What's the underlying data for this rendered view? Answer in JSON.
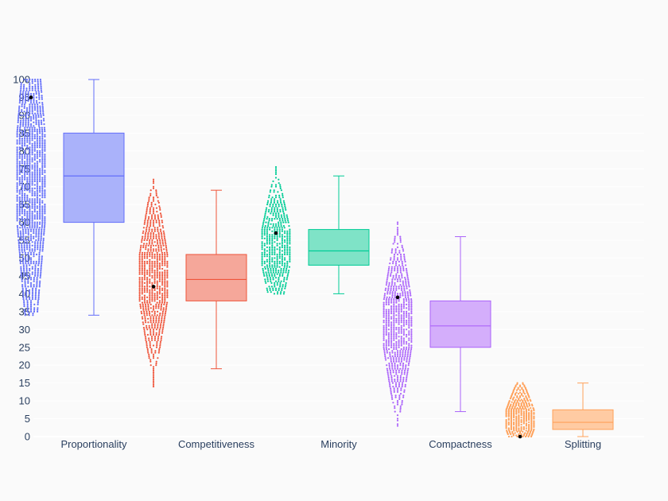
{
  "chart_data": {
    "type": "box",
    "title": "",
    "xlabel": "",
    "ylabel": "",
    "ylim": [
      0,
      100
    ],
    "ytick_step": 5,
    "grid": true,
    "legend": "none",
    "boxpoints": "all",
    "categories": [
      "Proportionality",
      "Competitiveness",
      "Minority",
      "Compactness",
      "Splitting"
    ],
    "series": [
      {
        "category": "Proportionality",
        "color": "#636efa",
        "fill": "#aab2fa",
        "whisker_low": 34,
        "q1": 60,
        "median": 73,
        "q3": 85,
        "whisker_high": 100,
        "points_min": 34,
        "points_max": 100,
        "highlight": 95
      },
      {
        "category": "Competitiveness",
        "color": "#ef553b",
        "fill": "#f5a79a",
        "whisker_low": 19,
        "q1": 38,
        "median": 44,
        "q3": 51,
        "whisker_high": 69,
        "points_min": 14,
        "points_max": 72,
        "highlight": 42
      },
      {
        "category": "Minority",
        "color": "#00cc96",
        "fill": "#7fe3c7",
        "whisker_low": 40,
        "q1": 48,
        "median": 52,
        "q3": 58,
        "whisker_high": 73,
        "points_min": 40,
        "points_max": 76,
        "highlight": 57
      },
      {
        "category": "Compactness",
        "color": "#ab63fa",
        "fill": "#d4aefb",
        "whisker_low": 7,
        "q1": 25,
        "median": 31,
        "q3": 38,
        "whisker_high": 56,
        "points_min": 3,
        "points_max": 60,
        "highlight": 39
      },
      {
        "category": "Splitting",
        "color": "#ffa15a",
        "fill": "#ffcba3",
        "whisker_low": 0,
        "q1": 2,
        "median": 4,
        "q3": 7.5,
        "whisker_high": 15,
        "points_min": 0,
        "points_max": 15,
        "highlight": 0
      }
    ]
  }
}
